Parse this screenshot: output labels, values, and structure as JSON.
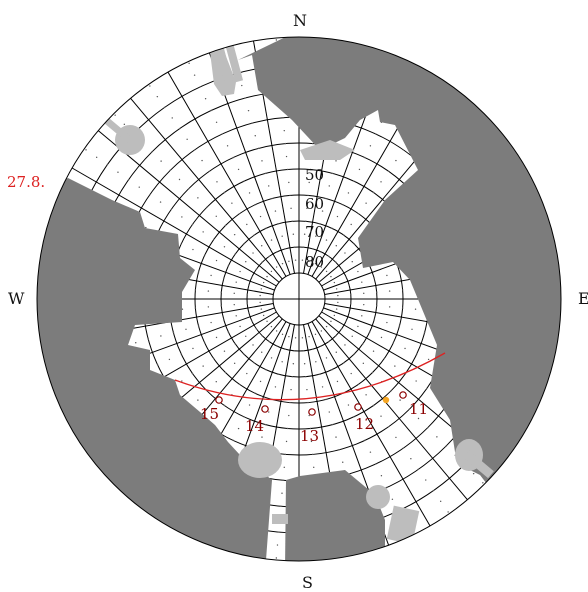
{
  "compass": {
    "north": "N",
    "south": "S",
    "east": "E",
    "west": "W"
  },
  "altitude_labels": [
    "50",
    "60",
    "70",
    "80"
  ],
  "sun_path": {
    "date_label": "27.8.",
    "hour_labels": [
      "11",
      "12",
      "13",
      "14",
      "15"
    ]
  },
  "colors": {
    "obstruction": "#7c7c7c",
    "obstruction_light": "#bdbdbd",
    "grid": "#000000",
    "sun_path": "#dd2222",
    "hour_label": "#8b0000",
    "sun_marker": "#f5a623"
  }
}
